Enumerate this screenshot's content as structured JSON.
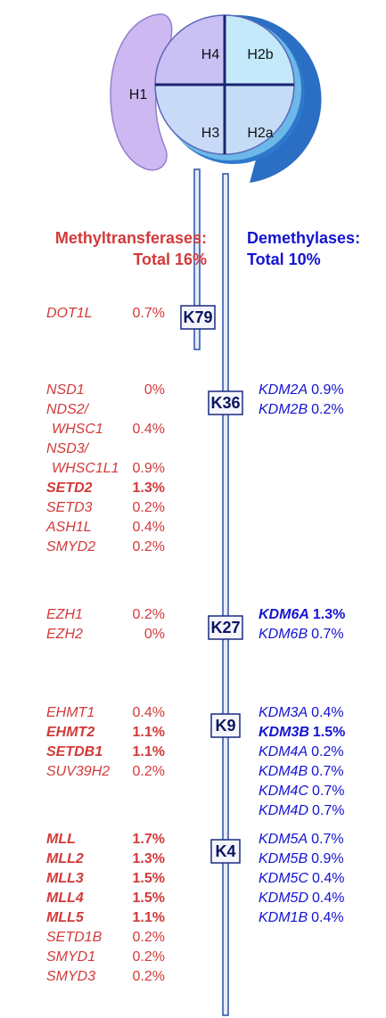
{
  "histones": {
    "h1": "H1",
    "h4": "H4",
    "h2b": "H2b",
    "h3": "H3",
    "h2a": "H2a"
  },
  "methyltransferases_header": {
    "title": "Methyltransferases:",
    "total": "Total 16%"
  },
  "demethylases_header": {
    "title": "Demethylases:",
    "total": "Total 10%"
  },
  "sites": [
    {
      "label": "K79",
      "methyltransferases": [
        {
          "name": [
            "DOT1L"
          ],
          "pct": "0.7%",
          "bold": false
        }
      ],
      "demethylases": []
    },
    {
      "label": "K36",
      "methyltransferases": [
        {
          "name": [
            "NSD1"
          ],
          "pct": "0%",
          "bold": false
        },
        {
          "name": [
            "NDS2/",
            "WHSC1"
          ],
          "pct": "0.4%",
          "bold": false
        },
        {
          "name": [
            "NSD3/",
            "WHSC1L1"
          ],
          "pct": "0.9%",
          "bold": false
        },
        {
          "name": [
            "SETD2"
          ],
          "pct": "1.3%",
          "bold": true
        },
        {
          "name": [
            "SETD3"
          ],
          "pct": "0.2%",
          "bold": false
        },
        {
          "name": [
            "ASH1L"
          ],
          "pct": "0.4%",
          "bold": false
        },
        {
          "name": [
            "SMYD2"
          ],
          "pct": "0.2%",
          "bold": false
        }
      ],
      "demethylases": [
        {
          "name": "KDM2A",
          "pct": "0.9%",
          "bold": false
        },
        {
          "name": "KDM2B",
          "pct": "0.2%",
          "bold": false
        }
      ]
    },
    {
      "label": "K27",
      "methyltransferases": [
        {
          "name": [
            "EZH1"
          ],
          "pct": "0.2%",
          "bold": false
        },
        {
          "name": [
            "EZH2"
          ],
          "pct": "0%",
          "bold": false
        }
      ],
      "demethylases": [
        {
          "name": "KDM6A",
          "pct": "1.3%",
          "bold": true
        },
        {
          "name": "KDM6B",
          "pct": "0.7%",
          "bold": false
        }
      ]
    },
    {
      "label": "K9",
      "methyltransferases": [
        {
          "name": [
            "EHMT1"
          ],
          "pct": "0.4%",
          "bold": false
        },
        {
          "name": [
            "EHMT2"
          ],
          "pct": "1.1%",
          "bold": true
        },
        {
          "name": [
            "SETDB1"
          ],
          "pct": "1.1%",
          "bold": true
        },
        {
          "name": [
            "SUV39H2"
          ],
          "pct": "0.2%",
          "bold": false
        }
      ],
      "demethylases": [
        {
          "name": "KDM3A",
          "pct": "0.4%",
          "bold": false
        },
        {
          "name": "KDM3B",
          "pct": "1.5%",
          "bold": true
        },
        {
          "name": "KDM4A",
          "pct": "0.2%",
          "bold": false
        },
        {
          "name": "KDM4B",
          "pct": "0.7%",
          "bold": false
        },
        {
          "name": "KDM4C",
          "pct": "0.7%",
          "bold": false
        },
        {
          "name": "KDM4D",
          "pct": "0.7%",
          "bold": false
        }
      ]
    },
    {
      "label": "K4",
      "methyltransferases": [
        {
          "name": [
            "MLL"
          ],
          "pct": "1.7%",
          "bold": true
        },
        {
          "name": [
            "MLL2"
          ],
          "pct": "1.3%",
          "bold": true
        },
        {
          "name": [
            "MLL3"
          ],
          "pct": "1.5%",
          "bold": true
        },
        {
          "name": [
            "MLL4"
          ],
          "pct": "1.5%",
          "bold": true
        },
        {
          "name": [
            "MLL5"
          ],
          "pct": "1.1%",
          "bold": true
        },
        {
          "name": [
            "SETD1B"
          ],
          "pct": "0.2%",
          "bold": false
        },
        {
          "name": [
            "SMYD1"
          ],
          "pct": "0.2%",
          "bold": false
        },
        {
          "name": [
            "SMYD3"
          ],
          "pct": "0.2%",
          "bold": false
        }
      ],
      "demethylases": [
        {
          "name": "KDM5A",
          "pct": "0.7%",
          "bold": false
        },
        {
          "name": "KDM5B",
          "pct": "0.9%",
          "bold": false
        },
        {
          "name": "KDM5C",
          "pct": "0.4%",
          "bold": false
        },
        {
          "name": "KDM5D",
          "pct": "0.4%",
          "bold": false
        },
        {
          "name": "KDM1B",
          "pct": "0.4%",
          "bold": false
        }
      ]
    }
  ]
}
